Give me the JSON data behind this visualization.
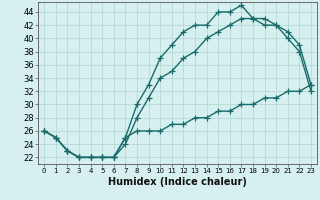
{
  "xlabel": "Humidex (Indice chaleur)",
  "bg_color": "#d6f0f0",
  "grid_color": "#b8d8d8",
  "line_color": "#1a6b6b",
  "xlim": [
    -0.5,
    23.5
  ],
  "ylim": [
    21,
    45.5
  ],
  "xticks": [
    0,
    1,
    2,
    3,
    4,
    5,
    6,
    7,
    8,
    9,
    10,
    11,
    12,
    13,
    14,
    15,
    16,
    17,
    18,
    19,
    20,
    21,
    22,
    23
  ],
  "yticks": [
    22,
    24,
    26,
    28,
    30,
    32,
    34,
    36,
    38,
    40,
    42,
    44
  ],
  "line1_x": [
    0,
    1,
    2,
    3,
    4,
    5,
    6,
    7,
    8,
    9,
    10,
    11,
    12,
    13,
    14,
    15,
    16,
    17,
    18,
    19,
    20,
    21,
    22,
    23
  ],
  "line1_y": [
    26,
    25,
    23,
    22,
    22,
    22,
    22,
    25,
    30,
    33,
    37,
    39,
    41,
    42,
    42,
    44,
    44,
    45,
    43,
    43,
    42,
    41,
    39,
    33
  ],
  "line2_x": [
    0,
    1,
    2,
    3,
    4,
    5,
    6,
    7,
    8,
    9,
    10,
    11,
    12,
    13,
    14,
    15,
    16,
    17,
    18,
    19,
    20,
    21,
    22,
    23
  ],
  "line2_y": [
    26,
    25,
    23,
    22,
    22,
    22,
    22,
    24,
    28,
    31,
    34,
    35,
    37,
    38,
    40,
    41,
    42,
    43,
    43,
    42,
    42,
    40,
    38,
    32
  ],
  "line3_x": [
    0,
    1,
    2,
    3,
    4,
    5,
    6,
    7,
    8,
    9,
    10,
    11,
    12,
    13,
    14,
    15,
    16,
    17,
    18,
    19,
    20,
    21,
    22,
    23
  ],
  "line3_y": [
    26,
    25,
    23,
    22,
    22,
    22,
    22,
    25,
    26,
    26,
    26,
    27,
    27,
    28,
    28,
    29,
    29,
    30,
    30,
    31,
    31,
    32,
    32,
    33
  ],
  "marker": "+",
  "markersize": 4,
  "linewidth": 1.0
}
